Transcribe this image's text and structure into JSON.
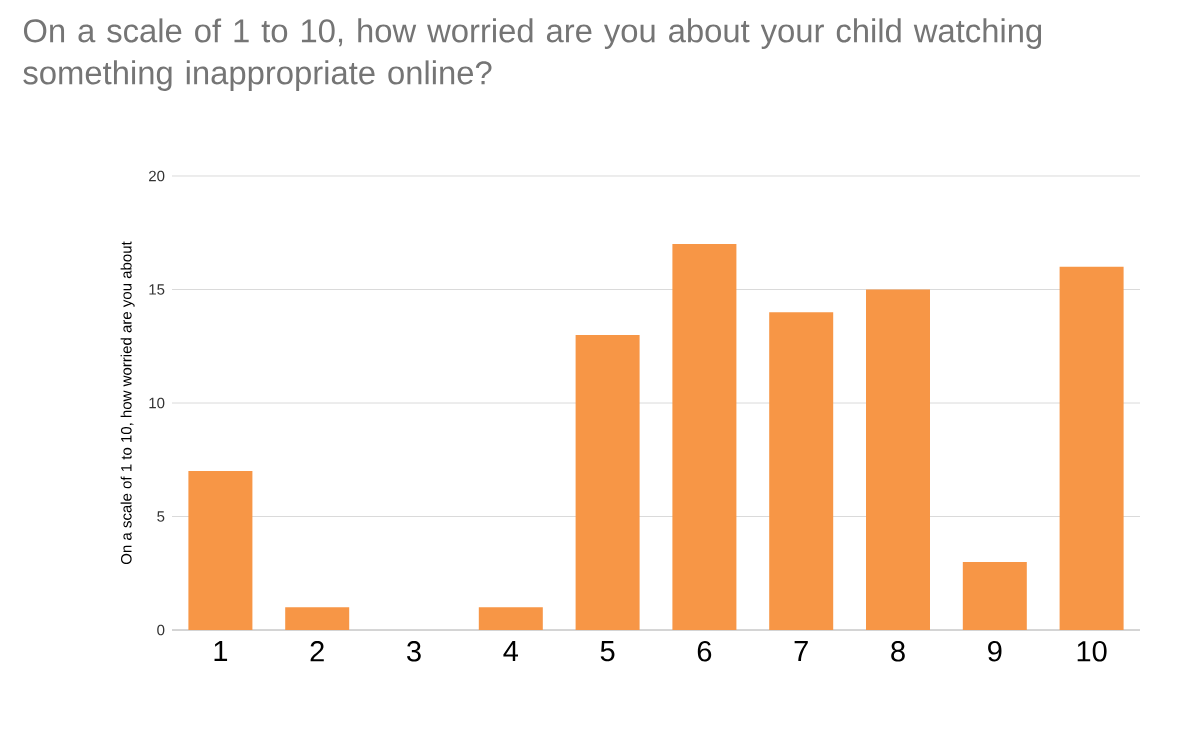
{
  "chart_data": {
    "type": "bar",
    "title": "On a scale of 1 to 10, how worried are you about your child watching something inappropriate online?",
    "ylabel": "On a scale of 1 to 10, how worried are you about",
    "categories": [
      "1",
      "2",
      "3",
      "4",
      "5",
      "6",
      "7",
      "8",
      "9",
      "10"
    ],
    "values": [
      7,
      1,
      0,
      1,
      13,
      17,
      14,
      15,
      3,
      16
    ],
    "color": "#f79646",
    "ylim": [
      0,
      20
    ],
    "yticks": [
      0,
      5,
      10,
      15,
      20
    ],
    "grid": "y"
  }
}
